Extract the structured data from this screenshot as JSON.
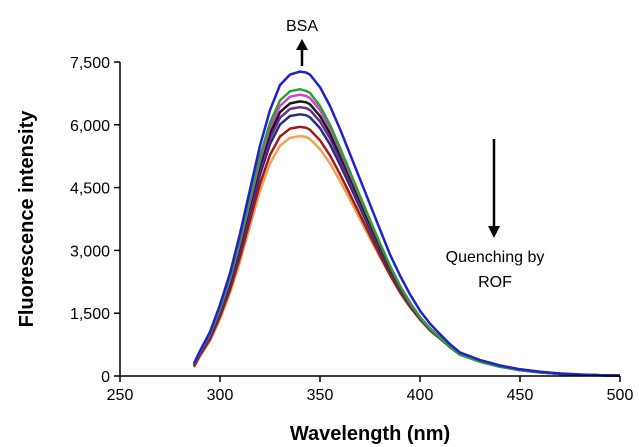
{
  "chart_data": {
    "type": "line",
    "title": "",
    "xlabel": "Wavelength (nm)",
    "ylabel": "Fluorescence intensity",
    "xlim": [
      250,
      500
    ],
    "ylim": [
      0,
      7500
    ],
    "x_ticks": [
      250,
      300,
      350,
      400,
      450,
      500
    ],
    "x_tick_labels": [
      "250",
      "300",
      "350",
      "400",
      "450",
      "500"
    ],
    "y_ticks": [
      0,
      1500,
      3000,
      4500,
      6000,
      7500
    ],
    "y_tick_labels": [
      "0",
      "1,500",
      "3,000",
      "4,500",
      "6,000",
      "7,500"
    ],
    "grid": false,
    "legend": "none",
    "annotations": {
      "bsa_label": "BSA",
      "quench_line1": "Quenching by",
      "quench_line2": "ROF"
    },
    "x": [
      287,
      290,
      295,
      300,
      305,
      310,
      315,
      320,
      325,
      330,
      335,
      340,
      343,
      345,
      350,
      355,
      360,
      365,
      370,
      375,
      380,
      385,
      390,
      395,
      400,
      405,
      410,
      415,
      420,
      430,
      440,
      450,
      460,
      470,
      480,
      490,
      500
    ],
    "series": [
      {
        "color": "#1f1fd6",
        "values": [
          300,
          600,
          1050,
          1700,
          2450,
          3400,
          4450,
          5500,
          6350,
          6950,
          7200,
          7270,
          7250,
          7200,
          6900,
          6450,
          5900,
          5300,
          4700,
          4100,
          3500,
          2900,
          2400,
          1950,
          1560,
          1250,
          1000,
          760,
          560,
          380,
          250,
          160,
          100,
          60,
          35,
          20,
          10
        ]
      },
      {
        "color": "#2ca02c",
        "values": [
          290,
          580,
          1010,
          1620,
          2350,
          3250,
          4250,
          5250,
          6050,
          6580,
          6800,
          6850,
          6810,
          6760,
          6450,
          6000,
          5450,
          4880,
          4300,
          3730,
          3170,
          2630,
          2150,
          1740,
          1400,
          1130,
          910,
          690,
          510,
          340,
          220,
          140,
          85,
          50,
          30,
          18,
          10
        ]
      },
      {
        "color": "#d43fd4",
        "values": [
          280,
          570,
          990,
          1590,
          2310,
          3190,
          4170,
          5150,
          5940,
          6450,
          6670,
          6720,
          6690,
          6640,
          6350,
          5920,
          5390,
          4830,
          4270,
          3710,
          3160,
          2630,
          2160,
          1760,
          1410,
          1140,
          920,
          700,
          520,
          350,
          230,
          145,
          88,
          52,
          31,
          18,
          10
        ]
      },
      {
        "color": "#1a1a1a",
        "values": [
          270,
          560,
          970,
          1560,
          2260,
          3120,
          4080,
          5030,
          5800,
          6300,
          6510,
          6560,
          6540,
          6490,
          6210,
          5800,
          5280,
          4740,
          4190,
          3640,
          3110,
          2590,
          2130,
          1740,
          1400,
          1130,
          910,
          700,
          520,
          350,
          230,
          145,
          88,
          52,
          31,
          18,
          10
        ]
      },
      {
        "color": "#6a2e8a",
        "values": [
          265,
          550,
          950,
          1530,
          2220,
          3060,
          4000,
          4930,
          5680,
          6170,
          6380,
          6420,
          6400,
          6350,
          6080,
          5680,
          5180,
          4650,
          4110,
          3580,
          3060,
          2550,
          2100,
          1720,
          1390,
          1120,
          900,
          690,
          510,
          345,
          225,
          142,
          86,
          51,
          30,
          18,
          10
        ]
      },
      {
        "color": "#2b2b7a",
        "values": [
          260,
          540,
          930,
          1500,
          2170,
          2990,
          3900,
          4810,
          5540,
          6010,
          6210,
          6250,
          6230,
          6180,
          5920,
          5530,
          5050,
          4540,
          4020,
          3500,
          3000,
          2510,
          2070,
          1700,
          1380,
          1110,
          900,
          690,
          510,
          345,
          225,
          142,
          86,
          51,
          30,
          18,
          10
        ]
      },
      {
        "color": "#a31a1a",
        "values": [
          230,
          500,
          880,
          1420,
          2060,
          2840,
          3720,
          4590,
          5280,
          5720,
          5910,
          5950,
          5930,
          5880,
          5630,
          5270,
          4820,
          4340,
          3850,
          3360,
          2880,
          2420,
          2000,
          1650,
          1350,
          1090,
          890,
          690,
          510,
          345,
          225,
          142,
          86,
          51,
          30,
          18,
          10
        ]
      },
      {
        "color": "#f0a050",
        "values": [
          200,
          470,
          840,
          1360,
          1980,
          2730,
          3580,
          4420,
          5080,
          5500,
          5690,
          5730,
          5710,
          5660,
          5420,
          5080,
          4660,
          4210,
          3750,
          3290,
          2840,
          2400,
          2000,
          1660,
          1360,
          1120,
          960,
          760,
          560,
          380,
          250,
          160,
          100,
          60,
          35,
          20,
          10
        ]
      }
    ]
  }
}
